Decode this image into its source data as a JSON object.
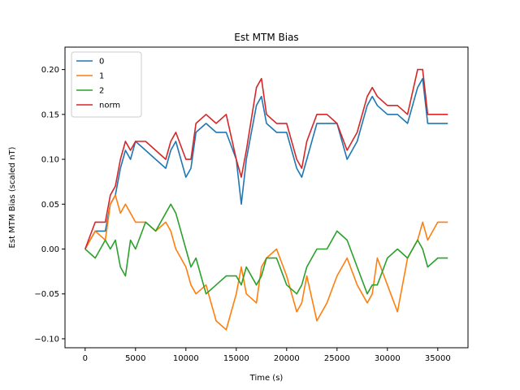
{
  "chart_data": {
    "type": "line",
    "title": "Est MTM Bias",
    "xlabel": "Time (s)",
    "ylabel": "Est MTM Bias (scaled nT)",
    "xlim": [
      -2000,
      38000
    ],
    "ylim": [
      -0.11,
      0.225
    ],
    "xticks": [
      0,
      5000,
      10000,
      15000,
      20000,
      25000,
      30000,
      35000
    ],
    "xtick_labels": [
      "0",
      "5000",
      "10000",
      "15000",
      "20000",
      "25000",
      "30000",
      "35000"
    ],
    "yticks": [
      -0.1,
      -0.05,
      0.0,
      0.05,
      0.1,
      0.15,
      0.2
    ],
    "ytick_labels": [
      "−0.10",
      "−0.05",
      "0.00",
      "0.05",
      "0.10",
      "0.15",
      "0.20"
    ],
    "grid": false,
    "legend_position": "top-left",
    "x": [
      0,
      1000,
      2000,
      2500,
      3000,
      3500,
      4000,
      4500,
      5000,
      6000,
      7000,
      8000,
      8500,
      9000,
      10000,
      10500,
      11000,
      12000,
      13000,
      14000,
      15000,
      15500,
      16000,
      17000,
      17500,
      18000,
      19000,
      20000,
      21000,
      21500,
      22000,
      23000,
      24000,
      25000,
      26000,
      27000,
      28000,
      28500,
      29000,
      30000,
      31000,
      32000,
      33000,
      33500,
      34000,
      35000,
      36000
    ],
    "series": [
      {
        "name": "0",
        "color": "#1f77b4",
        "values": [
          0.0,
          0.02,
          0.02,
          0.05,
          0.06,
          0.09,
          0.11,
          0.1,
          0.12,
          0.11,
          0.1,
          0.09,
          0.11,
          0.12,
          0.08,
          0.09,
          0.13,
          0.14,
          0.13,
          0.13,
          0.1,
          0.05,
          0.1,
          0.16,
          0.17,
          0.14,
          0.13,
          0.13,
          0.09,
          0.08,
          0.1,
          0.14,
          0.14,
          0.14,
          0.1,
          0.12,
          0.16,
          0.17,
          0.16,
          0.15,
          0.15,
          0.14,
          0.18,
          0.19,
          0.14,
          0.14,
          0.14
        ]
      },
      {
        "name": "1",
        "color": "#ff7f0e",
        "values": [
          0.0,
          0.02,
          0.01,
          0.05,
          0.06,
          0.04,
          0.05,
          0.04,
          0.03,
          0.03,
          0.02,
          0.03,
          0.02,
          0.0,
          -0.02,
          -0.04,
          -0.05,
          -0.04,
          -0.08,
          -0.09,
          -0.05,
          -0.02,
          -0.05,
          -0.06,
          -0.02,
          -0.01,
          0.0,
          -0.03,
          -0.07,
          -0.06,
          -0.03,
          -0.08,
          -0.06,
          -0.03,
          -0.01,
          -0.04,
          -0.06,
          -0.05,
          -0.01,
          -0.04,
          -0.07,
          -0.01,
          0.01,
          0.03,
          0.01,
          0.03,
          0.03
        ]
      },
      {
        "name": "2",
        "color": "#2ca02c",
        "values": [
          0.0,
          -0.01,
          0.01,
          0.0,
          0.01,
          -0.02,
          -0.03,
          0.01,
          0.0,
          0.03,
          0.02,
          0.04,
          0.05,
          0.04,
          0.0,
          -0.02,
          -0.01,
          -0.05,
          -0.04,
          -0.03,
          -0.03,
          -0.04,
          -0.02,
          -0.04,
          -0.03,
          -0.01,
          -0.01,
          -0.04,
          -0.05,
          -0.04,
          -0.02,
          0.0,
          0.0,
          0.02,
          0.01,
          -0.02,
          -0.05,
          -0.04,
          -0.04,
          -0.01,
          0.0,
          -0.01,
          0.01,
          0.0,
          -0.02,
          -0.01,
          -0.01
        ]
      },
      {
        "name": "norm",
        "color": "#d62728",
        "values": [
          0.0,
          0.03,
          0.03,
          0.06,
          0.07,
          0.1,
          0.12,
          0.11,
          0.12,
          0.12,
          0.11,
          0.1,
          0.12,
          0.13,
          0.1,
          0.1,
          0.14,
          0.15,
          0.14,
          0.15,
          0.1,
          0.08,
          0.11,
          0.18,
          0.19,
          0.15,
          0.14,
          0.14,
          0.1,
          0.09,
          0.12,
          0.15,
          0.15,
          0.14,
          0.11,
          0.13,
          0.17,
          0.18,
          0.17,
          0.16,
          0.16,
          0.15,
          0.2,
          0.2,
          0.15,
          0.15,
          0.15
        ]
      }
    ]
  }
}
